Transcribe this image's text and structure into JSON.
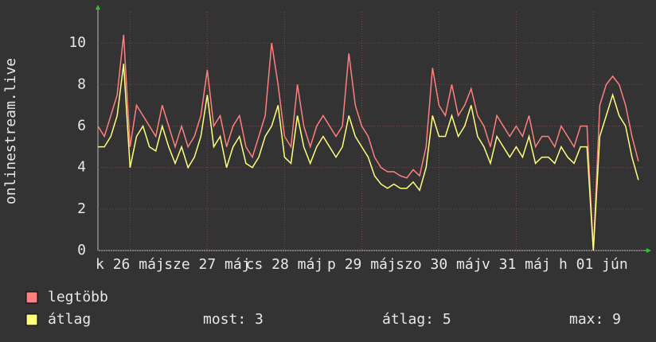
{
  "chart_data": {
    "type": "line",
    "y_label": "onlinestream.live",
    "x": [
      0,
      2,
      4,
      6,
      8,
      10,
      12,
      14,
      16,
      18,
      20,
      22,
      24,
      26,
      28,
      30,
      32,
      34,
      36,
      38,
      40,
      42,
      44,
      46,
      48,
      50,
      52,
      54,
      56,
      58,
      60,
      62,
      64,
      66,
      68,
      70,
      72,
      74,
      76,
      78,
      80,
      82,
      84,
      86,
      88,
      90,
      92,
      94,
      96,
      98,
      100,
      102,
      104,
      106,
      108,
      110,
      112,
      114,
      116,
      118,
      120,
      122,
      124,
      126,
      128,
      130,
      132,
      134,
      136,
      138,
      140,
      142,
      144,
      146,
      148,
      150,
      152,
      154,
      156,
      158,
      160,
      162,
      164,
      166,
      168
    ],
    "series": [
      {
        "name": "legtöbb",
        "color": "#ff7f7f",
        "values": [
          6,
          5.5,
          6.5,
          7.5,
          10.4,
          5,
          7,
          6.5,
          6,
          5.5,
          7,
          6,
          5,
          6,
          5,
          5.5,
          6.5,
          8.7,
          6,
          6.5,
          5,
          6,
          6.5,
          5,
          4.5,
          5.5,
          6.5,
          10,
          8,
          5.5,
          5,
          8,
          6,
          5,
          6,
          6.5,
          6,
          5.5,
          6,
          9.5,
          7,
          6,
          5.5,
          4.5,
          4,
          3.8,
          3.8,
          3.6,
          3.5,
          3.9,
          3.6,
          5,
          8.8,
          7,
          6.5,
          8,
          6.5,
          7,
          7.8,
          6.5,
          6,
          5,
          6.5,
          6,
          5.5,
          6,
          5.5,
          6.5,
          5,
          5.5,
          5.5,
          5,
          6,
          5.5,
          5,
          6,
          6,
          0,
          7,
          8,
          8.4,
          8,
          7,
          5.5,
          4.3
        ]
      },
      {
        "name": "átlag",
        "color": "#ffff7f",
        "values": [
          5,
          5,
          5.5,
          6.5,
          9,
          4,
          5.5,
          6,
          5,
          4.8,
          6,
          5,
          4.2,
          5,
          4,
          4.5,
          5.5,
          7.5,
          5,
          5.5,
          4,
          5,
          5.5,
          4.2,
          4,
          4.5,
          5.5,
          6,
          7,
          4.5,
          4.2,
          6.5,
          5,
          4.2,
          5,
          5.5,
          5,
          4.5,
          5,
          6.5,
          5.5,
          5,
          4.5,
          3.6,
          3.2,
          3,
          3.2,
          3,
          3,
          3.3,
          2.9,
          4,
          6.5,
          5.5,
          5.5,
          6.5,
          5.5,
          6,
          7,
          5.5,
          5,
          4.2,
          5.5,
          5,
          4.5,
          5,
          4.5,
          5.5,
          4.2,
          4.5,
          4.5,
          4.2,
          5,
          4.5,
          4.2,
          5,
          5,
          0,
          5.5,
          6.5,
          7.5,
          6.5,
          6,
          4.5,
          3.4
        ]
      }
    ],
    "xlim": [
      0,
      170
    ],
    "xticks": [
      {
        "value": 10,
        "label": "k 26 máj"
      },
      {
        "value": 34,
        "label": "sze 27 máj"
      },
      {
        "value": 58,
        "label": "cs 28 máj"
      },
      {
        "value": 82,
        "label": "p 29 máj"
      },
      {
        "value": 106,
        "label": "szo 30 máj"
      },
      {
        "value": 130,
        "label": "v 31 máj"
      },
      {
        "value": 154,
        "label": "h 01 jún"
      }
    ],
    "ylim": [
      0,
      11.5
    ],
    "yticks": [
      0,
      2,
      4,
      6,
      8,
      10
    ],
    "grid": true,
    "stats": [
      "most: 3",
      "átlag: 5",
      "max: 9"
    ]
  }
}
